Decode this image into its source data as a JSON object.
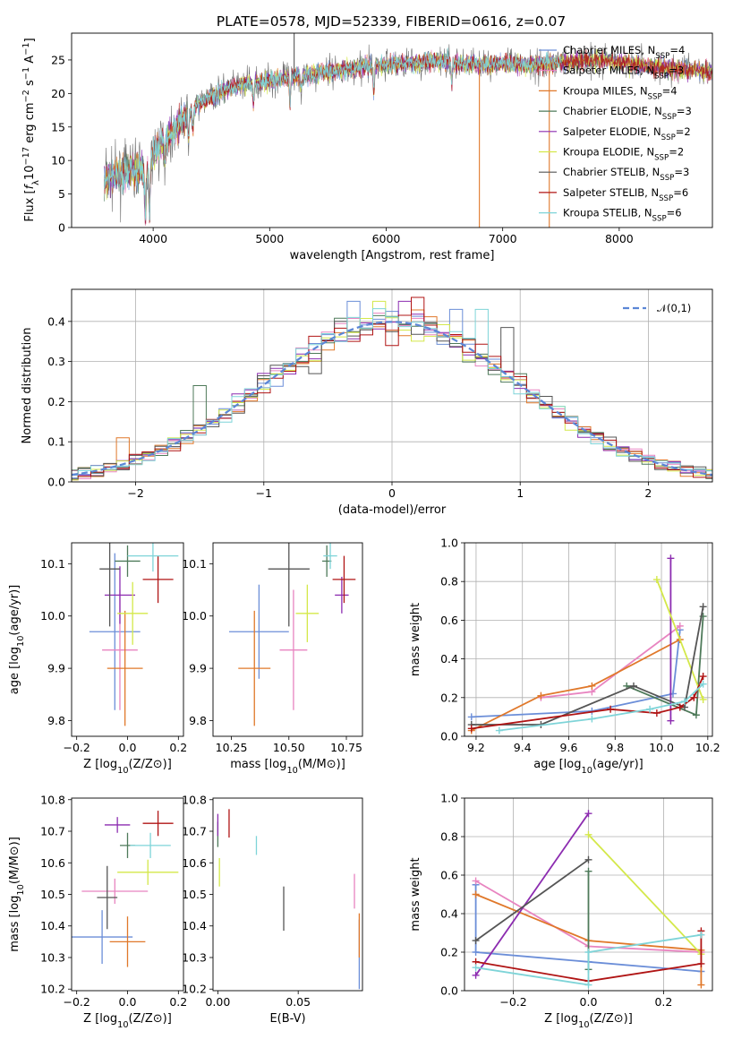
{
  "colors": {
    "chabrier_miles": "#6b8ed8",
    "salpeter_miles": "#e884c0",
    "kroupa_miles": "#e0782a",
    "chabrier_elodie": "#4e7a5a",
    "salpeter_elodie": "#8c2cb0",
    "kroupa_elodie": "#d4e84a",
    "chabrier_stelib": "#555555",
    "salpeter_stelib": "#b01414",
    "kroupa_stelib": "#7ed4d8",
    "gauss": "#5b86d6",
    "grid": "#b0b0b0"
  },
  "chart_data": [
    {
      "type": "line",
      "title": "PLATE=0578, MJD=52339, FIBERID=0616, z=0.07",
      "xlabel": "wavelength [Angstrom, rest frame]",
      "ylabel": "Flux [f_λ10^-17 erg cm^-2 s^-1 A^-1]",
      "xlim": [
        3300,
        8800
      ],
      "ylim": [
        0,
        29
      ],
      "xticks": [
        "4000",
        "5000",
        "6000",
        "7000",
        "8000"
      ],
      "yticks": [
        "0",
        "5",
        "10",
        "15",
        "20",
        "25"
      ],
      "grid": false,
      "legend_position": "upper right",
      "series": [
        {
          "name": "Chabrier MILES, N_SSP=4",
          "color_key": "chabrier_miles"
        },
        {
          "name": "Salpeter MILES, N_SSP=3",
          "color_key": "salpeter_miles"
        },
        {
          "name": "Kroupa MILES, N_SSP=4",
          "color_key": "kroupa_miles"
        },
        {
          "name": "Chabrier ELODIE, N_SSP=3",
          "color_key": "chabrier_elodie"
        },
        {
          "name": "Salpeter ELODIE, N_SSP=2",
          "color_key": "salpeter_elodie"
        },
        {
          "name": "Kroupa ELODIE, N_SSP=2",
          "color_key": "kroupa_elodie"
        },
        {
          "name": "Chabrier STELIB, N_SSP=3",
          "color_key": "chabrier_stelib"
        },
        {
          "name": "Salpeter STELIB, N_SSP=6",
          "color_key": "salpeter_stelib"
        },
        {
          "name": "Kroupa STELIB, N_SSP=6",
          "color_key": "kroupa_stelib"
        }
      ],
      "continuum": {
        "x": [
          3580,
          3700,
          3800,
          3900,
          3950,
          4000,
          4100,
          4200,
          4300,
          4400,
          4500,
          4600,
          4800,
          5000,
          5200,
          5400,
          5600,
          5800,
          6000,
          6200,
          6400,
          6600,
          6800,
          7000,
          7200,
          7400,
          7600,
          7800,
          8000,
          8200,
          8400,
          8600,
          8800
        ],
        "y": [
          7,
          8,
          8.5,
          9,
          8,
          11,
          13,
          15,
          17,
          18.5,
          19.5,
          20.5,
          21.5,
          22,
          22.5,
          23,
          23.5,
          24,
          24.3,
          24.5,
          24.8,
          24.5,
          24.3,
          24.5,
          24.2,
          24.5,
          24.8,
          25,
          24.7,
          24.2,
          23.8,
          23.5,
          23.3
        ]
      },
      "absorption_lines": [
        {
          "x": 3934,
          "depth": 7
        },
        {
          "x": 3968,
          "depth": 7
        },
        {
          "x": 4102,
          "depth": 3
        },
        {
          "x": 4304,
          "depth": 4
        },
        {
          "x": 4340,
          "depth": 3
        },
        {
          "x": 4861,
          "depth": 3
        },
        {
          "x": 5175,
          "depth": 4
        },
        {
          "x": 5270,
          "depth": 2
        },
        {
          "x": 5893,
          "depth": 4
        },
        {
          "x": 6563,
          "depth": 3
        }
      ],
      "spikes": [
        {
          "x": 5210,
          "to": 29
        },
        {
          "x": 6800,
          "to": 0
        },
        {
          "x": 7400,
          "to": 0
        }
      ]
    },
    {
      "type": "histogram",
      "xlabel": "(data-model)/error",
      "ylabel": "Normed distribution",
      "xlim": [
        -2.5,
        2.5
      ],
      "ylim": [
        0,
        0.48
      ],
      "xticks": [
        "−2",
        "−1",
        "0",
        "1",
        "2"
      ],
      "yticks": [
        "0.0",
        "0.1",
        "0.2",
        "0.3",
        "0.4"
      ],
      "grid": true,
      "bin_width": 0.1,
      "legend_position": "upper right",
      "reference_curve": {
        "name": "𝒩(0,1)",
        "mean": 0,
        "sigma": 1,
        "color_key": "gauss"
      },
      "series_color_keys": [
        "chabrier_miles",
        "salpeter_miles",
        "kroupa_miles",
        "chabrier_elodie",
        "salpeter_elodie",
        "kroupa_elodie",
        "chabrier_stelib",
        "salpeter_stelib",
        "kroupa_stelib"
      ],
      "outliers": [
        {
          "series": 0,
          "x": -0.25,
          "y": 0.45
        },
        {
          "series": 0,
          "x": 0.55,
          "y": 0.43
        },
        {
          "series": 6,
          "x": -0.55,
          "y": 0.27
        },
        {
          "series": 6,
          "x": -0.35,
          "y": 0.4
        },
        {
          "series": 6,
          "x": 0.95,
          "y": 0.385
        },
        {
          "series": 7,
          "x": 0.25,
          "y": 0.46
        },
        {
          "series": 7,
          "x": 0.05,
          "y": 0.34
        },
        {
          "series": 8,
          "x": 0.75,
          "y": 0.43
        },
        {
          "series": 5,
          "x": -0.05,
          "y": 0.45
        },
        {
          "series": 4,
          "x": 0.15,
          "y": 0.45
        },
        {
          "series": 3,
          "x": -1.45,
          "y": 0.24
        },
        {
          "series": 2,
          "x": -2.05,
          "y": 0.11
        }
      ]
    },
    {
      "type": "scatter",
      "xlabel": "Z [log10(Z/Z⊙)]",
      "ylabel": "age  [log10(age/yr)]",
      "xlim": [
        -0.22,
        0.22
      ],
      "ylim": [
        9.77,
        10.14
      ],
      "xticks": [
        "−0.2",
        "0.0",
        "0.2"
      ],
      "yticks": [
        "9.8",
        "9.9",
        "10.0",
        "10.1"
      ],
      "points": [
        {
          "color_key": "chabrier_miles",
          "x": -0.05,
          "y": 9.97,
          "xerr": 0.1,
          "yerr": 0.15
        },
        {
          "color_key": "salpeter_miles",
          "x": -0.03,
          "y": 9.935,
          "xerr": 0.07,
          "yerr": 0.115
        },
        {
          "color_key": "kroupa_miles",
          "x": -0.01,
          "y": 9.9,
          "xerr": 0.07,
          "yerr": 0.11
        },
        {
          "color_key": "chabrier_elodie",
          "x": 0.0,
          "y": 10.105,
          "xerr": 0.05,
          "yerr": 0.03
        },
        {
          "color_key": "salpeter_elodie",
          "x": -0.03,
          "y": 10.04,
          "xerr": 0.06,
          "yerr": 0.055
        },
        {
          "color_key": "kroupa_elodie",
          "x": 0.02,
          "y": 10.005,
          "xerr": 0.06,
          "yerr": 0.06
        },
        {
          "color_key": "chabrier_stelib",
          "x": -0.07,
          "y": 10.09,
          "xerr": 0.04,
          "yerr": 0.11
        },
        {
          "color_key": "salpeter_stelib",
          "x": 0.12,
          "y": 10.07,
          "xerr": 0.06,
          "yerr": 0.045
        },
        {
          "color_key": "kroupa_stelib",
          "x": 0.1,
          "y": 10.115,
          "xerr": 0.1,
          "yerr": 0.03
        }
      ]
    },
    {
      "type": "scatter",
      "xlabel": "mass [log10(M/M⊙)]",
      "ylabel": "",
      "xlim": [
        10.17,
        10.82
      ],
      "ylim": [
        9.77,
        10.14
      ],
      "xticks": [
        "10.25",
        "10.50",
        "10.75"
      ],
      "yticks": [
        "9.8",
        "9.9",
        "10.0",
        "10.1"
      ],
      "points": [
        {
          "color_key": "chabrier_miles",
          "x": 10.37,
          "y": 9.97,
          "xerr": 0.13,
          "yerr": 0.09
        },
        {
          "color_key": "salpeter_miles",
          "x": 10.52,
          "y": 9.935,
          "xerr": 0.06,
          "yerr": 0.115
        },
        {
          "color_key": "kroupa_miles",
          "x": 10.35,
          "y": 9.9,
          "xerr": 0.07,
          "yerr": 0.11
        },
        {
          "color_key": "chabrier_elodie",
          "x": 10.665,
          "y": 10.105,
          "xerr": 0.02,
          "yerr": 0.03
        },
        {
          "color_key": "salpeter_elodie",
          "x": 10.73,
          "y": 10.04,
          "xerr": 0.03,
          "yerr": 0.035
        },
        {
          "color_key": "kroupa_elodie",
          "x": 10.58,
          "y": 10.005,
          "xerr": 0.05,
          "yerr": 0.055
        },
        {
          "color_key": "chabrier_stelib",
          "x": 10.5,
          "y": 10.09,
          "xerr": 0.09,
          "yerr": 0.11
        },
        {
          "color_key": "salpeter_stelib",
          "x": 10.74,
          "y": 10.07,
          "xerr": 0.05,
          "yerr": 0.045
        },
        {
          "color_key": "kroupa_stelib",
          "x": 10.68,
          "y": 10.115,
          "xerr": 0.03,
          "yerr": 0.025
        }
      ]
    },
    {
      "type": "line",
      "xlabel": "age  [log10(age/yr)]",
      "ylabel": "mass weight",
      "xlim": [
        9.15,
        10.22
      ],
      "ylim": [
        0.0,
        1.0
      ],
      "xticks": [
        "9.2",
        "9.4",
        "9.6",
        "9.8",
        "10.0",
        "10.2"
      ],
      "yticks": [
        "0.0",
        "0.2",
        "0.4",
        "0.6",
        "0.8",
        "1.0"
      ],
      "grid": true,
      "series": [
        {
          "color_key": "chabrier_miles",
          "x": [
            9.18,
            9.7,
            10.05,
            10.08
          ],
          "y": [
            0.1,
            0.13,
            0.22,
            0.55
          ]
        },
        {
          "color_key": "salpeter_miles",
          "x": [
            9.48,
            9.7,
            10.08
          ],
          "y": [
            0.2,
            0.23,
            0.57
          ]
        },
        {
          "color_key": "kroupa_miles",
          "x": [
            9.18,
            9.48,
            9.7,
            10.08
          ],
          "y": [
            0.03,
            0.21,
            0.26,
            0.5
          ]
        },
        {
          "color_key": "chabrier_elodie",
          "x": [
            9.85,
            10.15,
            10.18
          ],
          "y": [
            0.26,
            0.11,
            0.62
          ]
        },
        {
          "color_key": "salpeter_elodie",
          "x": [
            10.04,
            10.04
          ],
          "y": [
            0.08,
            0.92
          ]
        },
        {
          "color_key": "kroupa_elodie",
          "x": [
            9.98,
            10.18
          ],
          "y": [
            0.81,
            0.19
          ]
        },
        {
          "color_key": "chabrier_stelib",
          "x": [
            9.18,
            9.48,
            9.88,
            10.1,
            10.18
          ],
          "y": [
            0.06,
            0.06,
            0.26,
            0.15,
            0.67
          ]
        },
        {
          "color_key": "salpeter_stelib",
          "x": [
            9.18,
            9.78,
            9.98,
            10.08,
            10.14,
            10.18
          ],
          "y": [
            0.04,
            0.14,
            0.12,
            0.15,
            0.2,
            0.31
          ]
        },
        {
          "color_key": "kroupa_stelib",
          "x": [
            9.3,
            9.7,
            9.95,
            10.1,
            10.18
          ],
          "y": [
            0.03,
            0.09,
            0.14,
            0.18,
            0.27
          ]
        }
      ]
    },
    {
      "type": "scatter",
      "xlabel": "Z [log10(Z/Z⊙)]",
      "ylabel": "mass [log10(M/M⊙)]",
      "xlim": [
        -0.22,
        0.22
      ],
      "ylim": [
        10.195,
        10.805
      ],
      "xticks": [
        "−0.2",
        "0.0",
        "0.2"
      ],
      "yticks": [
        "10.2",
        "10.3",
        "10.4",
        "10.5",
        "10.6",
        "10.7",
        "10.8"
      ],
      "points": [
        {
          "color_key": "chabrier_miles",
          "x": -0.1,
          "y": 10.365,
          "xerr": 0.12,
          "yerr": 0.085
        },
        {
          "color_key": "salpeter_miles",
          "x": -0.05,
          "y": 10.51,
          "xerr": 0.13,
          "yerr": 0.04
        },
        {
          "color_key": "kroupa_miles",
          "x": 0.0,
          "y": 10.35,
          "xerr": 0.07,
          "yerr": 0.08
        },
        {
          "color_key": "chabrier_elodie",
          "x": 0.0,
          "y": 10.655,
          "xerr": 0.03,
          "yerr": 0.04
        },
        {
          "color_key": "salpeter_elodie",
          "x": -0.04,
          "y": 10.72,
          "xerr": 0.05,
          "yerr": 0.025
        },
        {
          "color_key": "kroupa_elodie",
          "x": 0.08,
          "y": 10.57,
          "xerr": 0.12,
          "yerr": 0.04
        },
        {
          "color_key": "chabrier_stelib",
          "x": -0.08,
          "y": 10.49,
          "xerr": 0.04,
          "yerr": 0.1
        },
        {
          "color_key": "salpeter_stelib",
          "x": 0.12,
          "y": 10.725,
          "xerr": 0.06,
          "yerr": 0.04
        },
        {
          "color_key": "kroupa_stelib",
          "x": 0.09,
          "y": 10.655,
          "xerr": 0.08,
          "yerr": 0.04
        }
      ]
    },
    {
      "type": "scatter",
      "xlabel": "E(B-V)",
      "ylabel": "",
      "xlim": [
        -0.003,
        0.09
      ],
      "ylim": [
        10.195,
        10.805
      ],
      "xticks": [
        "0.00",
        "0.05"
      ],
      "yticks": [
        "10.2",
        "10.3",
        "10.4",
        "10.5",
        "10.6",
        "10.7",
        "10.8"
      ],
      "points": [
        {
          "color_key": "chabrier_miles",
          "x": 0.088,
          "y": 10.31,
          "xerr": 0,
          "yerr": 0.11
        },
        {
          "color_key": "salpeter_miles",
          "x": 0.085,
          "y": 10.51,
          "xerr": 0,
          "yerr": 0.055
        },
        {
          "color_key": "kroupa_miles",
          "x": 0.088,
          "y": 10.37,
          "xerr": 0,
          "yerr": 0.07
        },
        {
          "color_key": "chabrier_elodie",
          "x": 0.0,
          "y": 10.69,
          "xerr": 0,
          "yerr": 0.04
        },
        {
          "color_key": "salpeter_elodie",
          "x": 0.0,
          "y": 10.72,
          "xerr": 0,
          "yerr": 0.035
        },
        {
          "color_key": "kroupa_elodie",
          "x": 0.001,
          "y": 10.57,
          "xerr": 0,
          "yerr": 0.045
        },
        {
          "color_key": "chabrier_stelib",
          "x": 0.041,
          "y": 10.455,
          "xerr": 0,
          "yerr": 0.07
        },
        {
          "color_key": "salpeter_stelib",
          "x": 0.007,
          "y": 10.725,
          "xerr": 0,
          "yerr": 0.045
        },
        {
          "color_key": "kroupa_stelib",
          "x": 0.024,
          "y": 10.655,
          "xerr": 0,
          "yerr": 0.03
        }
      ]
    },
    {
      "type": "line",
      "xlabel": "Z [log10(Z/Z⊙)]",
      "ylabel": "mass weight",
      "xlim": [
        -0.33,
        0.33
      ],
      "ylim": [
        0.0,
        1.0
      ],
      "xticks": [
        "−0.2",
        "0.0",
        "0.2"
      ],
      "yticks": [
        "0.0",
        "0.2",
        "0.4",
        "0.6",
        "0.8",
        "1.0"
      ],
      "grid": true,
      "series": [
        {
          "color_key": "chabrier_miles",
          "x": [
            -0.3,
            -0.3,
            0.0,
            0.3
          ],
          "y": [
            0.55,
            0.2,
            0.15,
            0.1
          ]
        },
        {
          "color_key": "salpeter_miles",
          "x": [
            -0.3,
            0.0,
            0.3
          ],
          "y": [
            0.57,
            0.23,
            0.2
          ]
        },
        {
          "color_key": "kroupa_miles",
          "x": [
            -0.3,
            0.0,
            0.3,
            0.3
          ],
          "y": [
            0.5,
            0.26,
            0.21,
            0.03
          ]
        },
        {
          "color_key": "chabrier_elodie",
          "x": [
            0.0,
            0.0
          ],
          "y": [
            0.62,
            0.11
          ]
        },
        {
          "color_key": "salpeter_elodie",
          "x": [
            -0.3,
            0.0
          ],
          "y": [
            0.08,
            0.92
          ]
        },
        {
          "color_key": "kroupa_elodie",
          "x": [
            0.0,
            0.3
          ],
          "y": [
            0.81,
            0.19
          ]
        },
        {
          "color_key": "chabrier_stelib",
          "x": [
            -0.3,
            0.0
          ],
          "y": [
            0.26,
            0.68
          ]
        },
        {
          "color_key": "salpeter_stelib",
          "x": [
            -0.3,
            0.0,
            0.3,
            0.3
          ],
          "y": [
            0.15,
            0.05,
            0.14,
            0.31
          ]
        },
        {
          "color_key": "kroupa_stelib",
          "x": [
            -0.3,
            0.0,
            0.0,
            0.3
          ],
          "y": [
            0.12,
            0.03,
            0.2,
            0.29
          ]
        }
      ]
    }
  ]
}
